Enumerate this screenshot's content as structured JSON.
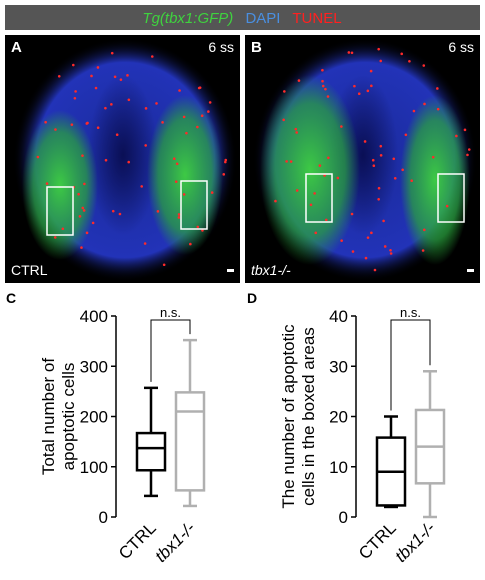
{
  "legend_bar": {
    "gfp": "Tg(tbx1:GFP)",
    "dapi": "DAPI",
    "tunel": "TUNEL"
  },
  "panels": [
    {
      "label": "A",
      "stage": "6 ss",
      "genotype": "CTRL"
    },
    {
      "label": "B",
      "stage": "6 ss",
      "genotype": "tbx1-/-"
    }
  ],
  "chart_data": [
    {
      "type": "box",
      "panel_label": "C",
      "ylabel": [
        "Total number of",
        "apoptotic cells"
      ],
      "ylim": [
        0,
        400
      ],
      "yticks": [
        0,
        100,
        200,
        300,
        400
      ],
      "annotation": "n.s.",
      "boxes": [
        {
          "name": "CTRL",
          "color": "#000000",
          "min": 42,
          "q1": 93,
          "median": 137,
          "q3": 167,
          "max": 257
        },
        {
          "name": "tbx1-/-",
          "color": "#b0b0b0",
          "min": 22,
          "q1": 53,
          "median": 210,
          "q3": 248,
          "max": 352
        }
      ]
    },
    {
      "type": "box",
      "panel_label": "D",
      "ylabel": [
        "The number of apoptotic",
        "cells in the boxed areas"
      ],
      "ylim": [
        0,
        40
      ],
      "yticks": [
        0,
        10,
        20,
        30,
        40
      ],
      "annotation": "n.s.",
      "boxes": [
        {
          "name": "CTRL",
          "color": "#000000",
          "min": 2,
          "q1": 2.3,
          "median": 9,
          "q3": 15.8,
          "max": 20
        },
        {
          "name": "tbx1-/-",
          "color": "#b0b0b0",
          "min": 0,
          "q1": 6.7,
          "median": 14,
          "q3": 21.3,
          "max": 29
        }
      ]
    }
  ]
}
